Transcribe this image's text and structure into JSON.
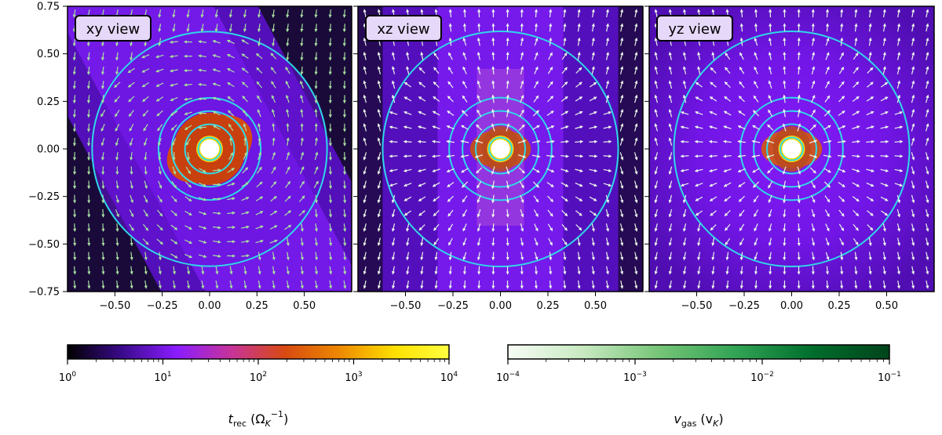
{
  "chart_data": {
    "type": "heatmap",
    "panels": [
      {
        "label": "xy view",
        "variant": "xy"
      },
      {
        "label": "xz view",
        "variant": "xz"
      },
      {
        "label": "yz view",
        "variant": "yz"
      }
    ],
    "xticks": [
      "−0.50",
      "−0.25",
      "0.00",
      "0.25",
      "0.50"
    ],
    "xtick_values": [
      -0.5,
      -0.25,
      0.0,
      0.25,
      0.5
    ],
    "yticks": [
      "0.75",
      "0.50",
      "0.25",
      "0.00",
      "−0.25",
      "−0.50",
      "−0.75"
    ],
    "ytick_values": [
      0.75,
      0.5,
      0.25,
      0.0,
      -0.25,
      -0.5,
      -0.75
    ],
    "xlim": [
      -0.75,
      0.75
    ],
    "ylim": [
      -0.75,
      0.75
    ],
    "contour_radii": [
      0.06,
      0.13,
      0.2,
      0.27,
      0.62
    ],
    "colorbars": [
      {
        "name": "trec",
        "label_main": "t",
        "label_sub": "rec",
        "label_unit": "(Ω",
        "label_unit_sub": "K",
        "label_unit_sup": "−1",
        "label_close": ")",
        "ticks": [
          {
            "base": "10",
            "exp": "0"
          },
          {
            "base": "10",
            "exp": "1"
          },
          {
            "base": "10",
            "exp": "2"
          },
          {
            "base": "10",
            "exp": "3"
          },
          {
            "base": "10",
            "exp": "4"
          }
        ],
        "colors": [
          "#000000",
          "#3a0a8c",
          "#8a1cff",
          "#c7339a",
          "#d84a10",
          "#ee8a00",
          "#fde000",
          "#ffff40"
        ]
      },
      {
        "name": "vgas",
        "label_main": "v",
        "label_sub": "gas",
        "label_unit": "(v",
        "label_unit_sub": "K",
        "label_close": ")",
        "ticks": [
          {
            "base": "10",
            "exp": "−4"
          },
          {
            "base": "10",
            "exp": "−3"
          },
          {
            "base": "10",
            "exp": "−2"
          },
          {
            "base": "10",
            "exp": "−1"
          }
        ],
        "colors": [
          "#f7fcf5",
          "#c7e9c0",
          "#74c476",
          "#31a354",
          "#006d2c",
          "#00441b"
        ]
      }
    ],
    "colors": {
      "background": "#1a0a3a",
      "field": "#7a1cf0",
      "core": "#d44a12",
      "contour": "#2fd8e8",
      "arrow_xy": "#a8e0a0",
      "arrow_other": "#e8f4e6"
    }
  }
}
